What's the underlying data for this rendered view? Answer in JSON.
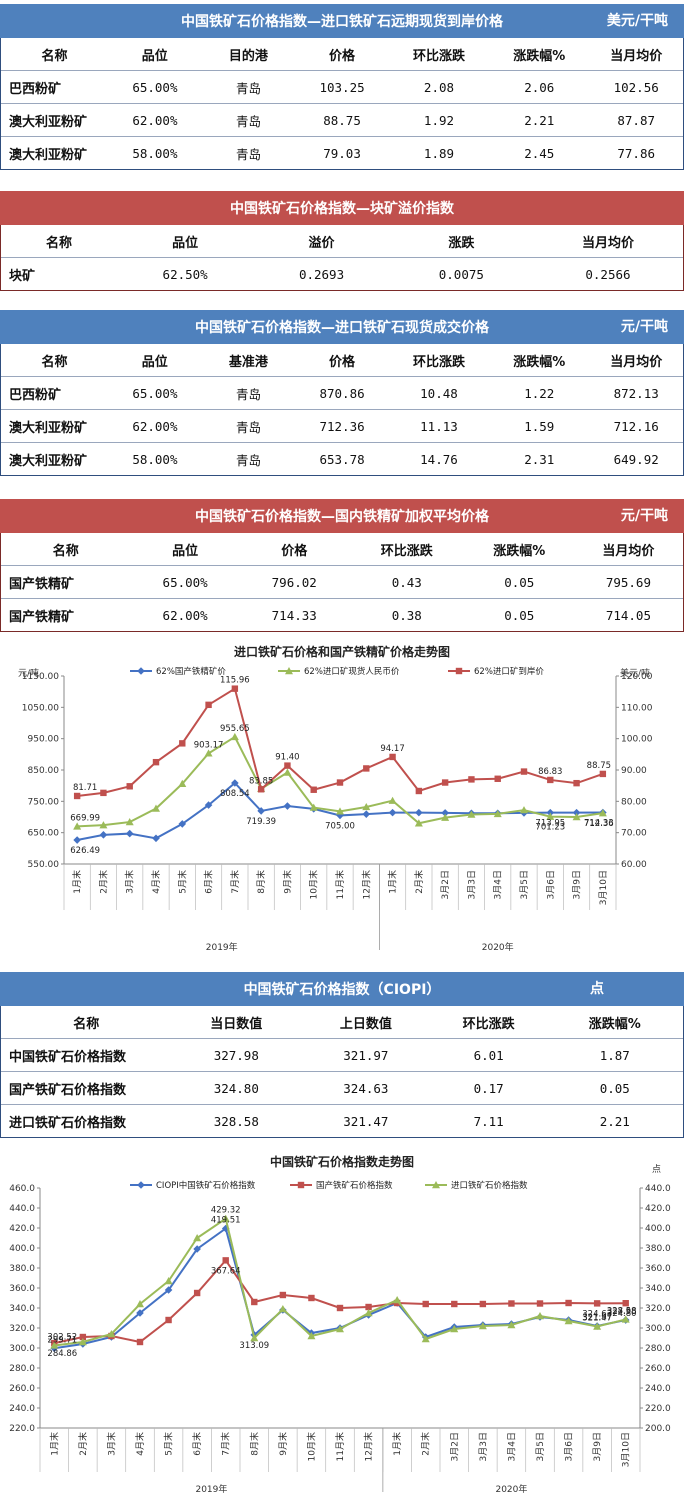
{
  "colors": {
    "blue_header": "#4f81bd",
    "red_header": "#c0504d",
    "line_blue": "#4472c4",
    "line_green": "#9bbb59",
    "line_red": "#c0504d"
  },
  "t1": {
    "title": "中国铁矿石价格指数—进口铁矿石远期现货到岸价格",
    "unit": "美元/干吨",
    "headers": [
      "名称",
      "品位",
      "目的港",
      "价格",
      "环比涨跌",
      "涨跌幅%",
      "当月均价"
    ],
    "rows": [
      [
        "巴西粉矿",
        "65.00%",
        "青岛",
        "103.25",
        "2.08",
        "2.06",
        "102.56"
      ],
      [
        "澳大利亚粉矿",
        "62.00%",
        "青岛",
        "88.75",
        "1.92",
        "2.21",
        "87.87"
      ],
      [
        "澳大利亚粉矿",
        "58.00%",
        "青岛",
        "79.03",
        "1.89",
        "2.45",
        "77.86"
      ]
    ]
  },
  "t2": {
    "title": "中国铁矿石价格指数—块矿溢价指数",
    "headers": [
      "名称",
      "品位",
      "溢价",
      "涨跌",
      "当月均价"
    ],
    "rows": [
      [
        "块矿",
        "62.50%",
        "0.2693",
        "0.0075",
        "0.2566"
      ]
    ]
  },
  "t3": {
    "title": "中国铁矿石价格指数—进口铁矿石现货成交价格",
    "unit": "元/干吨",
    "headers": [
      "名称",
      "品位",
      "基准港",
      "价格",
      "环比涨跌",
      "涨跌幅%",
      "当月均价"
    ],
    "rows": [
      [
        "巴西粉矿",
        "65.00%",
        "青岛",
        "870.86",
        "10.48",
        "1.22",
        "872.13"
      ],
      [
        "澳大利亚粉矿",
        "62.00%",
        "青岛",
        "712.36",
        "11.13",
        "1.59",
        "712.16"
      ],
      [
        "澳大利亚粉矿",
        "58.00%",
        "青岛",
        "653.78",
        "14.76",
        "2.31",
        "649.92"
      ]
    ]
  },
  "t4": {
    "title": "中国铁矿石价格指数—国内铁精矿加权平均价格",
    "unit": "元/干吨",
    "headers": [
      "名称",
      "品位",
      "价格",
      "环比涨跌",
      "涨跌幅%",
      "当月均价"
    ],
    "rows": [
      [
        "国产铁精矿",
        "65.00%",
        "796.02",
        "0.43",
        "0.05",
        "795.69"
      ],
      [
        "国产铁精矿",
        "62.00%",
        "714.33",
        "0.38",
        "0.05",
        "714.05"
      ]
    ]
  },
  "t5": {
    "title": "中国铁矿石价格指数（CIOPI）",
    "unit": "点",
    "headers": [
      "名称",
      "当日数值",
      "上日数值",
      "环比涨跌",
      "涨跌幅%"
    ],
    "rows": [
      [
        "中国铁矿石价格指数",
        "327.98",
        "321.97",
        "6.01",
        "1.87"
      ],
      [
        "国产铁矿石价格指数",
        "324.80",
        "324.63",
        "0.17",
        "0.05"
      ],
      [
        "进口铁矿石价格指数",
        "328.58",
        "321.47",
        "7.11",
        "2.21"
      ]
    ]
  },
  "chart_data": [
    {
      "type": "line",
      "title": "进口铁矿石价格和国产铁精矿价格走势图",
      "left_unit": "元/吨",
      "right_unit": "美元/吨",
      "categories": [
        "1月末",
        "2月末",
        "3月末",
        "4月末",
        "5月末",
        "6月末",
        "7月末",
        "8月末",
        "9月末",
        "10月末",
        "11月末",
        "12月末",
        "1月末",
        "2月末",
        "3月2日",
        "3月3日",
        "3月4日",
        "3月5日",
        "3月6日",
        "3月9日",
        "3月10日"
      ],
      "year_groups": [
        {
          "label": "2019年",
          "count": 12
        },
        {
          "label": "2020年",
          "count": 9
        }
      ],
      "left_axis": {
        "min": 550,
        "max": 1150,
        "step": 100,
        "ticks": [
          "550.00",
          "650.00",
          "750.00",
          "850.00",
          "950.00",
          "1050.00",
          "1150.00"
        ]
      },
      "right_axis": {
        "min": 60,
        "max": 120,
        "step": 10,
        "ticks": [
          "60.00",
          "70.00",
          "80.00",
          "90.00",
          "100.00",
          "110.00",
          "120.00"
        ]
      },
      "series": [
        {
          "name": "62%国产铁精矿价",
          "axis": "left",
          "color": "#4472c4",
          "marker": "diamond",
          "values": [
            626.49,
            643,
            647,
            632,
            678,
            738,
            808.54,
            719.39,
            735,
            726,
            705,
            709,
            714,
            714,
            713,
            712,
            712,
            713,
            713.95,
            714,
            714.33
          ]
        },
        {
          "name": "62%进口矿现货人民币价",
          "axis": "left",
          "color": "#9bbb59",
          "marker": "triangle",
          "values": [
            669.99,
            674,
            684,
            727,
            806,
            903.17,
            955.65,
            790,
            842,
            730,
            718,
            732,
            752,
            680,
            698,
            708,
            710,
            722,
            701.23,
            700,
            712.36
          ]
        },
        {
          "name": "62%进口矿到岸价",
          "axis": "right",
          "color": "#c0504d",
          "marker": "square",
          "values": [
            81.71,
            82.7,
            84.8,
            92.5,
            98.5,
            110.8,
            115.96,
            83.85,
            91.4,
            83.7,
            86,
            90.5,
            94.17,
            83.3,
            86,
            87,
            87.2,
            89.5,
            86.83,
            85.8,
            88.75
          ]
        }
      ],
      "data_labels": [
        {
          "series": 0,
          "index": 0,
          "text": "626.49"
        },
        {
          "series": 0,
          "index": 6,
          "text": "808.54"
        },
        {
          "series": 0,
          "index": 7,
          "text": "719.39"
        },
        {
          "series": 0,
          "index": 10,
          "text": "705.00"
        },
        {
          "series": 0,
          "index": 18,
          "text": "713.95"
        },
        {
          "series": 0,
          "index": 20,
          "text": "714.33"
        },
        {
          "series": 1,
          "index": 0,
          "text": "669.99"
        },
        {
          "series": 1,
          "index": 5,
          "text": "903.17"
        },
        {
          "series": 1,
          "index": 6,
          "text": "955.65"
        },
        {
          "series": 1,
          "index": 18,
          "text": "701.23"
        },
        {
          "series": 1,
          "index": 20,
          "text": "712.36"
        },
        {
          "series": 2,
          "index": 0,
          "text": "81.71"
        },
        {
          "series": 2,
          "index": 6,
          "text": "115.96"
        },
        {
          "series": 2,
          "index": 7,
          "text": "83.85"
        },
        {
          "series": 2,
          "index": 8,
          "text": "91.40"
        },
        {
          "series": 2,
          "index": 12,
          "text": "94.17"
        },
        {
          "series": 2,
          "index": 18,
          "text": "86.83"
        },
        {
          "series": 2,
          "index": 20,
          "text": "88.75"
        }
      ]
    },
    {
      "type": "line",
      "title": "中国铁矿石价格指数走势图",
      "right_unit": "点",
      "categories": [
        "1月末",
        "2月末",
        "3月末",
        "4月末",
        "5月末",
        "6月末",
        "7月末",
        "8月末",
        "9月末",
        "10月末",
        "11月末",
        "12月末",
        "1月末",
        "2月末",
        "3月2日",
        "3月3日",
        "3月4日",
        "3月5日",
        "3月6日",
        "3月9日",
        "3月10日"
      ],
      "year_groups": [
        {
          "label": "2019年",
          "count": 12
        },
        {
          "label": "2020年",
          "count": 9
        }
      ],
      "left_axis": {
        "min": 220,
        "max": 460,
        "step": 20,
        "ticks": [
          "220.0",
          "240.0",
          "260.0",
          "280.0",
          "300.0",
          "320.0",
          "340.0",
          "360.0",
          "380.0",
          "400.0",
          "420.0",
          "440.0",
          "460.0"
        ]
      },
      "right_axis": {
        "min": 200,
        "max": 440,
        "step": 20,
        "ticks": [
          "200.0",
          "220.0",
          "240.0",
          "260.0",
          "280.0",
          "300.0",
          "320.0",
          "340.0",
          "360.0",
          "380.0",
          "400.0",
          "420.0",
          "440.0"
        ]
      },
      "series": [
        {
          "name": "CIOPI中国铁矿石价格指数",
          "axis": "left",
          "color": "#4472c4",
          "marker": "diamond",
          "values": [
            299.71,
            304,
            311,
            335,
            358,
            399,
            419.51,
            313.09,
            338,
            315,
            320,
            333,
            345,
            311,
            321,
            323,
            324,
            331,
            328,
            321.97,
            327.98
          ]
        },
        {
          "name": "国产铁矿石价格指数",
          "axis": "right",
          "color": "#c0504d",
          "marker": "square",
          "values": [
            284.86,
            291,
            292,
            286,
            308,
            335,
            367.64,
            326,
            333,
            330,
            320,
            321,
            325,
            324,
            324,
            324,
            324.5,
            324.5,
            325,
            324.63,
            324.8
          ]
        },
        {
          "name": "进口铁矿石价格指数",
          "axis": "left",
          "color": "#9bbb59",
          "marker": "triangle",
          "values": [
            302.52,
            306,
            314,
            344,
            367,
            410,
            429.32,
            310,
            339,
            312,
            319,
            335,
            348,
            309,
            319,
            322,
            323,
            332,
            327,
            321.47,
            328.58
          ]
        }
      ],
      "data_labels": [
        {
          "series": 0,
          "index": 0,
          "text": "299.71"
        },
        {
          "series": 0,
          "index": 6,
          "text": "419.51"
        },
        {
          "series": 0,
          "index": 7,
          "text": "313.09"
        },
        {
          "series": 0,
          "index": 19,
          "text": "321.97"
        },
        {
          "series": 0,
          "index": 20,
          "text": "327.98"
        },
        {
          "series": 1,
          "index": 0,
          "text": "284.86"
        },
        {
          "series": 1,
          "index": 6,
          "text": "367.64"
        },
        {
          "series": 1,
          "index": 19,
          "text": "324.63"
        },
        {
          "series": 1,
          "index": 20,
          "text": "324.80"
        },
        {
          "series": 2,
          "index": 0,
          "text": "302.52"
        },
        {
          "series": 2,
          "index": 6,
          "text": "429.32"
        },
        {
          "series": 2,
          "index": 19,
          "text": "321.47"
        },
        {
          "series": 2,
          "index": 20,
          "text": "328.58"
        }
      ]
    }
  ]
}
